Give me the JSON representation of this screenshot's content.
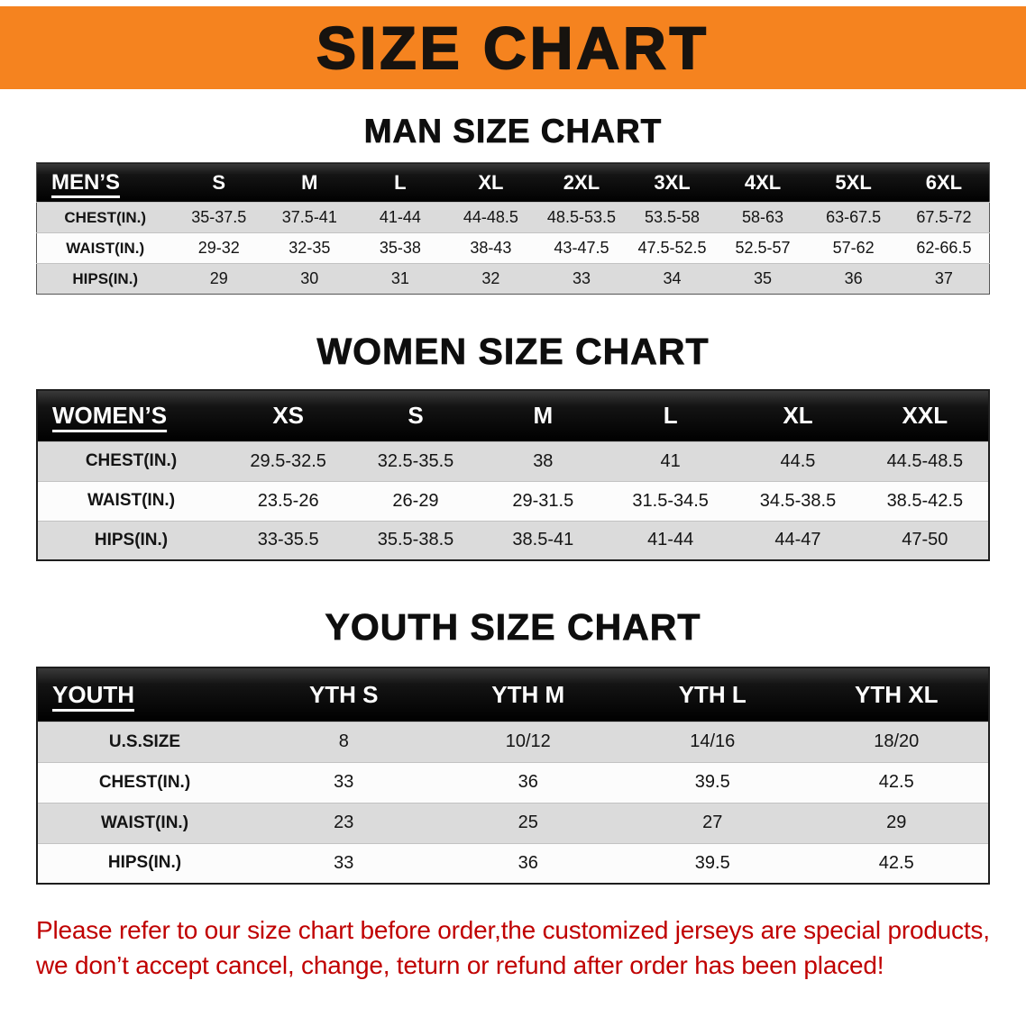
{
  "banner": {
    "title": "SIZE CHART"
  },
  "colors": {
    "banner_bg": "#F5831F",
    "header_bg": "#0B0B0B",
    "row_alt": "#DBDBDB",
    "disclaimer": "#C00000"
  },
  "sections": {
    "men": {
      "heading": "MAN SIZE CHART"
    },
    "women": {
      "heading": "WOMEN SIZE CHART"
    },
    "youth": {
      "heading": "YOUTH SIZE CHART"
    }
  },
  "tables": {
    "men": {
      "header": [
        "MEN’S",
        "S",
        "M",
        "L",
        "XL",
        "2XL",
        "3XL",
        "4XL",
        "5XL",
        "6XL"
      ],
      "rows": [
        {
          "label": "CHEST(IN.)",
          "values": [
            "35-37.5",
            "37.5-41",
            "41-44",
            "44-48.5",
            "48.5-53.5",
            "53.5-58",
            "58-63",
            "63-67.5",
            "67.5-72"
          ]
        },
        {
          "label": "WAIST(IN.)",
          "values": [
            "29-32",
            "32-35",
            "35-38",
            "38-43",
            "43-47.5",
            "47.5-52.5",
            "52.5-57",
            "57-62",
            "62-66.5"
          ]
        },
        {
          "label": "HIPS(IN.)",
          "values": [
            "29",
            "30",
            "31",
            "32",
            "33",
            "34",
            "35",
            "36",
            "37"
          ]
        }
      ]
    },
    "women": {
      "header": [
        "WOMEN’S",
        "XS",
        "S",
        "M",
        "L",
        "XL",
        "XXL"
      ],
      "rows": [
        {
          "label": "CHEST(IN.)",
          "values": [
            "29.5-32.5",
            "32.5-35.5",
            "38",
            "41",
            "44.5",
            "44.5-48.5"
          ]
        },
        {
          "label": "WAIST(IN.)",
          "values": [
            "23.5-26",
            "26-29",
            "29-31.5",
            "31.5-34.5",
            "34.5-38.5",
            "38.5-42.5"
          ]
        },
        {
          "label": "HIPS(IN.)",
          "values": [
            "33-35.5",
            "35.5-38.5",
            "38.5-41",
            "41-44",
            "44-47",
            "47-50"
          ]
        }
      ]
    },
    "youth": {
      "header": [
        "YOUTH",
        "YTH S",
        "YTH M",
        "YTH L",
        "YTH XL"
      ],
      "rows": [
        {
          "label": "U.S.SIZE",
          "values": [
            "8",
            "10/12",
            "14/16",
            "18/20"
          ]
        },
        {
          "label": "CHEST(IN.)",
          "values": [
            "33",
            "36",
            "39.5",
            "42.5"
          ]
        },
        {
          "label": "WAIST(IN.)",
          "values": [
            "23",
            "25",
            "27",
            "29"
          ]
        },
        {
          "label": "HIPS(IN.)",
          "values": [
            "33",
            "36",
            "39.5",
            "42.5"
          ]
        }
      ]
    }
  },
  "disclaimer": {
    "line1": "Please refer to our size chart before order,the customized jerseys are special products,",
    "line2": "we don’t accept cancel, change, teturn or refund after order has been placed!"
  }
}
